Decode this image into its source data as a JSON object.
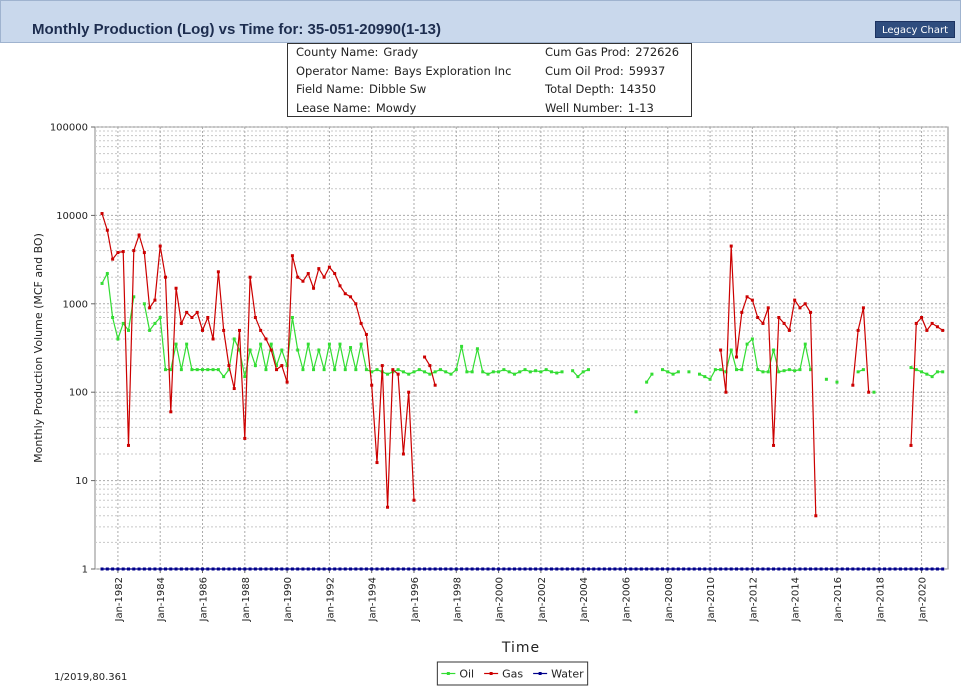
{
  "header": {
    "button": "Legacy Chart"
  },
  "info": [
    {
      "label": "County Name:",
      "value": "Grady"
    },
    {
      "label": "Cum Gas Prod:",
      "value": 272626
    },
    {
      "label": "Operator Name:",
      "value": "Bays Exploration Inc"
    },
    {
      "label": "Cum Oil Prod:",
      "value": 59937
    },
    {
      "label": "Field Name:",
      "value": "Dibble Sw"
    },
    {
      "label": "Total Depth:",
      "value": 14350
    },
    {
      "label": "Lease Name:",
      "value": "Mowdy"
    },
    {
      "label": "Well Number:",
      "value": "1-13"
    }
  ],
  "footer_text": "1/2019,80.361",
  "chart_data": {
    "type": "line",
    "title": "Monthly Production (Log) vs Time for: 35-051-20990(1-13)",
    "y_label": "Monthly Production Volume (MCF and BO)",
    "x_label": "Time",
    "log_y": true,
    "grid": true,
    "legend": "bottom-center",
    "ylim": [
      1,
      100000
    ],
    "yticks": [
      1,
      10,
      100,
      1000,
      10000,
      100000
    ],
    "xlim": [
      "1980-12",
      "2021-04"
    ],
    "xticks": [
      {
        "value": "1982-01",
        "label": "Jan-1982"
      },
      {
        "value": "1984-01",
        "label": "Jan-1984"
      },
      {
        "value": "1986-01",
        "label": "Jan-1986"
      },
      {
        "value": "1988-01",
        "label": "Jan-1988"
      },
      {
        "value": "1990-01",
        "label": "Jan-1990"
      },
      {
        "value": "1992-01",
        "label": "Jan-1992"
      },
      {
        "value": "1994-01",
        "label": "Jan-1994"
      },
      {
        "value": "1996-01",
        "label": "Jan-1996"
      },
      {
        "value": "1998-01",
        "label": "Jan-1998"
      },
      {
        "value": "2000-01",
        "label": "Jan-2000"
      },
      {
        "value": "2002-01",
        "label": "Jan-2002"
      },
      {
        "value": "2004-01",
        "label": "Jan-2004"
      },
      {
        "value": "2006-01",
        "label": "Jan-2006"
      },
      {
        "value": "2008-01",
        "label": "Jan-2008"
      },
      {
        "value": "2010-01",
        "label": "Jan-2010"
      },
      {
        "value": "2012-01",
        "label": "Jan-2012"
      },
      {
        "value": "2014-01",
        "label": "Jan-2014"
      },
      {
        "value": "2016-01",
        "label": "Jan-2016"
      },
      {
        "value": "2018-01",
        "label": "Jan-2018"
      },
      {
        "value": "2020-01",
        "label": "Jan-2020"
      }
    ],
    "x": [
      "1981-04",
      "1981-07",
      "1981-10",
      "1982-01",
      "1982-04",
      "1982-07",
      "1982-10",
      "1983-01",
      "1983-04",
      "1983-07",
      "1983-10",
      "1984-01",
      "1984-04",
      "1984-07",
      "1984-10",
      "1985-01",
      "1985-04",
      "1985-07",
      "1985-10",
      "1986-01",
      "1986-04",
      "1986-07",
      "1986-10",
      "1987-01",
      "1987-04",
      "1987-07",
      "1987-10",
      "1988-01",
      "1988-04",
      "1988-07",
      "1988-10",
      "1989-01",
      "1989-04",
      "1989-07",
      "1989-10",
      "1990-01",
      "1990-04",
      "1990-07",
      "1990-10",
      "1991-01",
      "1991-04",
      "1991-07",
      "1991-10",
      "1992-01",
      "1992-04",
      "1992-07",
      "1992-10",
      "1993-01",
      "1993-04",
      "1993-07",
      "1993-10",
      "1994-01",
      "1994-04",
      "1994-07",
      "1994-10",
      "1995-01",
      "1995-04",
      "1995-07",
      "1995-10",
      "1996-01",
      "1996-04",
      "1996-07",
      "1996-10",
      "1997-01",
      "1997-04",
      "1997-07",
      "1997-10",
      "1998-01",
      "1998-04",
      "1998-07",
      "1998-10",
      "1999-01",
      "1999-04",
      "1999-07",
      "1999-10",
      "2000-01",
      "2000-04",
      "2000-07",
      "2000-10",
      "2001-01",
      "2001-04",
      "2001-07",
      "2001-10",
      "2002-01",
      "2002-04",
      "2002-07",
      "2002-10",
      "2003-01",
      "2003-04",
      "2003-07",
      "2003-10",
      "2004-01",
      "2004-04",
      "2004-07",
      "2004-10",
      "2005-01",
      "2005-04",
      "2005-07",
      "2005-10",
      "2006-01",
      "2006-04",
      "2006-07",
      "2006-10",
      "2007-01",
      "2007-04",
      "2007-07",
      "2007-10",
      "2008-01",
      "2008-04",
      "2008-07",
      "2008-10",
      "2009-01",
      "2009-04",
      "2009-07",
      "2009-10",
      "2010-01",
      "2010-04",
      "2010-07",
      "2010-10",
      "2011-01",
      "2011-04",
      "2011-07",
      "2011-10",
      "2012-01",
      "2012-04",
      "2012-07",
      "2012-10",
      "2013-01",
      "2013-04",
      "2013-07",
      "2013-10",
      "2014-01",
      "2014-04",
      "2014-07",
      "2014-10",
      "2015-01",
      "2015-04",
      "2015-07",
      "2015-10",
      "2016-01",
      "2016-04",
      "2016-07",
      "2016-10",
      "2017-01",
      "2017-04",
      "2017-07",
      "2017-10",
      "2018-01",
      "2018-04",
      "2018-07",
      "2018-10",
      "2019-01",
      "2019-04",
      "2019-07",
      "2019-10",
      "2020-01",
      "2020-04",
      "2020-07",
      "2020-10",
      "2021-01"
    ],
    "series": [
      {
        "name": "Oil",
        "color": "#33dd33",
        "values": [
          1700,
          2200,
          700,
          400,
          600,
          500,
          1200,
          null,
          1000,
          500,
          600,
          700,
          180,
          180,
          350,
          180,
          350,
          180,
          180,
          180,
          180,
          180,
          180,
          150,
          180,
          400,
          300,
          150,
          300,
          200,
          350,
          180,
          350,
          200,
          300,
          200,
          700,
          300,
          180,
          350,
          180,
          300,
          180,
          350,
          180,
          350,
          180,
          320,
          180,
          350,
          180,
          170,
          180,
          170,
          160,
          170,
          180,
          170,
          160,
          170,
          180,
          170,
          160,
          170,
          180,
          170,
          160,
          180,
          330,
          170,
          170,
          310,
          170,
          160,
          170,
          170,
          180,
          170,
          160,
          170,
          180,
          170,
          175,
          170,
          180,
          170,
          165,
          170,
          null,
          175,
          150,
          170,
          180,
          null,
          null,
          null,
          null,
          null,
          null,
          null,
          null,
          60,
          null,
          130,
          160,
          null,
          180,
          170,
          160,
          170,
          null,
          170,
          null,
          160,
          150,
          140,
          180,
          180,
          170,
          300,
          180,
          180,
          350,
          400,
          180,
          170,
          170,
          300,
          170,
          175,
          180,
          175,
          180,
          350,
          180,
          null,
          null,
          140,
          null,
          130,
          null,
          null,
          null,
          170,
          180,
          null,
          100,
          null,
          null,
          null,
          null,
          null,
          null,
          190,
          180,
          170,
          160,
          150,
          170,
          170
        ]
      },
      {
        "name": "Gas",
        "color": "#cc0000",
        "values": [
          10500,
          6800,
          3200,
          3800,
          3900,
          25,
          4000,
          6000,
          3800,
          900,
          1100,
          4500,
          2000,
          60,
          1500,
          600,
          800,
          700,
          800,
          500,
          700,
          400,
          2300,
          500,
          200,
          110,
          500,
          30,
          2000,
          700,
          500,
          400,
          300,
          180,
          200,
          130,
          3500,
          2000,
          1800,
          2200,
          1500,
          2500,
          2000,
          2600,
          2200,
          1600,
          1300,
          1200,
          1000,
          600,
          450,
          120,
          16,
          200,
          5,
          180,
          160,
          20,
          100,
          6,
          null,
          250,
          200,
          120,
          null,
          null,
          null,
          null,
          null,
          null,
          null,
          null,
          null,
          null,
          null,
          null,
          null,
          null,
          null,
          null,
          null,
          null,
          null,
          null,
          null,
          null,
          null,
          null,
          null,
          null,
          null,
          null,
          null,
          null,
          null,
          null,
          null,
          null,
          null,
          null,
          null,
          null,
          null,
          null,
          null,
          null,
          null,
          null,
          null,
          null,
          null,
          null,
          null,
          null,
          null,
          null,
          null,
          300,
          100,
          4500,
          250,
          800,
          1200,
          1100,
          700,
          600,
          900,
          25,
          700,
          600,
          500,
          1100,
          900,
          1000,
          800,
          4,
          null,
          null,
          null,
          null,
          null,
          null,
          120,
          500,
          900,
          100,
          null,
          null,
          null,
          null,
          null,
          null,
          null,
          25,
          600,
          700,
          500,
          600,
          550,
          500
        ]
      },
      {
        "name": "Water",
        "color": "#00008b",
        "values": [
          1,
          1,
          1,
          1,
          1,
          1,
          1,
          1,
          1,
          1,
          1,
          1,
          1,
          1,
          1,
          1,
          1,
          1,
          1,
          1,
          1,
          1,
          1,
          1,
          1,
          1,
          1,
          1,
          1,
          1,
          1,
          1,
          1,
          1,
          1,
          1,
          1,
          1,
          1,
          1,
          1,
          1,
          1,
          1,
          1,
          1,
          1,
          1,
          1,
          1,
          1,
          1,
          1,
          1,
          1,
          1,
          1,
          1,
          1,
          1,
          1,
          1,
          1,
          1,
          1,
          1,
          1,
          1,
          1,
          1,
          1,
          1,
          1,
          1,
          1,
          1,
          1,
          1,
          1,
          1,
          1,
          1,
          1,
          1,
          1,
          1,
          1,
          1,
          1,
          1,
          1,
          1,
          1,
          1,
          1,
          1,
          1,
          1,
          1,
          1,
          1,
          1,
          1,
          1,
          1,
          1,
          1,
          1,
          1,
          1,
          1,
          1,
          1,
          1,
          1,
          1,
          1,
          1,
          1,
          1,
          1,
          1,
          1,
          1,
          1,
          1,
          1,
          1,
          1,
          1,
          1,
          1,
          1,
          1,
          1,
          1,
          1,
          1,
          1,
          1,
          1,
          1,
          1,
          1,
          1,
          1,
          1,
          1,
          1,
          1,
          1,
          1,
          1,
          1,
          1,
          1,
          1,
          1,
          1,
          1
        ]
      }
    ]
  }
}
